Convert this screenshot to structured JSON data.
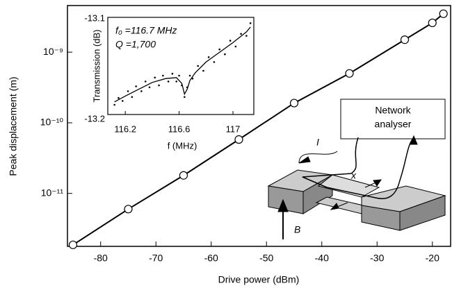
{
  "chart_data": [
    {
      "type": "line",
      "xlabel": "Drive power (dBm)",
      "ylabel": "Peak displacement (m)",
      "x": [
        -85,
        -75,
        -65,
        -55,
        -45,
        -35,
        -25,
        -20,
        -18
      ],
      "values": [
        1.87e-12,
        6e-12,
        1.8e-11,
        5.8e-11,
        1.9e-10,
        5e-10,
        1.5e-09,
        2.6e-09,
        3.5e-09
      ],
      "color": "#000000",
      "markers": true,
      "log_y": true,
      "xlim": [
        -86,
        -16.7
      ],
      "xticks": [
        -80,
        -70,
        -60,
        -50,
        -40,
        -30,
        -20
      ],
      "ylim": [
        1.78e-12,
        4.57e-09
      ],
      "yticks": [
        {
          "value": 1e-11,
          "label": "10⁻¹¹"
        },
        {
          "value": 1e-10,
          "label": "10⁻¹⁰"
        },
        {
          "value": 1e-09,
          "label": "10⁻⁹"
        }
      ]
    },
    {
      "type": "scatter",
      "xlabel": "f (MHz)",
      "ylabel": "Transmission (dB)",
      "annotations": [
        "f₀ =116.7 MHz",
        "Q =1,700"
      ],
      "x": [
        116.12,
        116.15,
        116.18,
        116.22,
        116.25,
        116.28,
        116.32,
        116.35,
        116.38,
        116.42,
        116.45,
        116.48,
        116.52,
        116.55,
        116.58,
        116.6,
        116.62,
        116.64,
        116.66,
        116.68,
        116.7,
        116.74,
        116.78,
        116.82,
        116.86,
        116.9,
        116.94,
        116.98,
        117.02,
        117.06,
        117.1,
        117.13
      ],
      "values": [
        -13.19,
        -13.183,
        -13.186,
        -13.176,
        -13.182,
        -13.171,
        -13.176,
        -13.166,
        -13.172,
        -13.162,
        -13.17,
        -13.16,
        -13.166,
        -13.158,
        -13.166,
        -13.16,
        -13.17,
        -13.182,
        -13.172,
        -13.16,
        -13.163,
        -13.15,
        -13.155,
        -13.141,
        -13.146,
        -13.133,
        -13.138,
        -13.124,
        -13.13,
        -13.117,
        -13.119,
        -13.106
      ],
      "fit": {
        "x": [
          116.12,
          116.2,
          116.3,
          116.4,
          116.5,
          116.58,
          116.62,
          116.64,
          116.66,
          116.68,
          116.72,
          116.8,
          116.9,
          117.0,
          117.1,
          117.13
        ],
        "values": [
          -13.187,
          -13.181,
          -13.174,
          -13.167,
          -13.163,
          -13.162,
          -13.168,
          -13.179,
          -13.174,
          -13.165,
          -13.157,
          -13.146,
          -13.136,
          -13.126,
          -13.115,
          -13.11
        ]
      },
      "color": "#000000",
      "xlim": [
        116.07,
        117.155
      ],
      "xticks": [
        116.2,
        116.6,
        117
      ],
      "ylim": [
        -13.2,
        -13.1
      ],
      "yticks": [
        -13.2,
        -13.1
      ]
    }
  ],
  "diagram": {
    "analyser": [
      "Network",
      "analyser"
    ],
    "current": "I",
    "displacement": "x",
    "field": "B"
  }
}
